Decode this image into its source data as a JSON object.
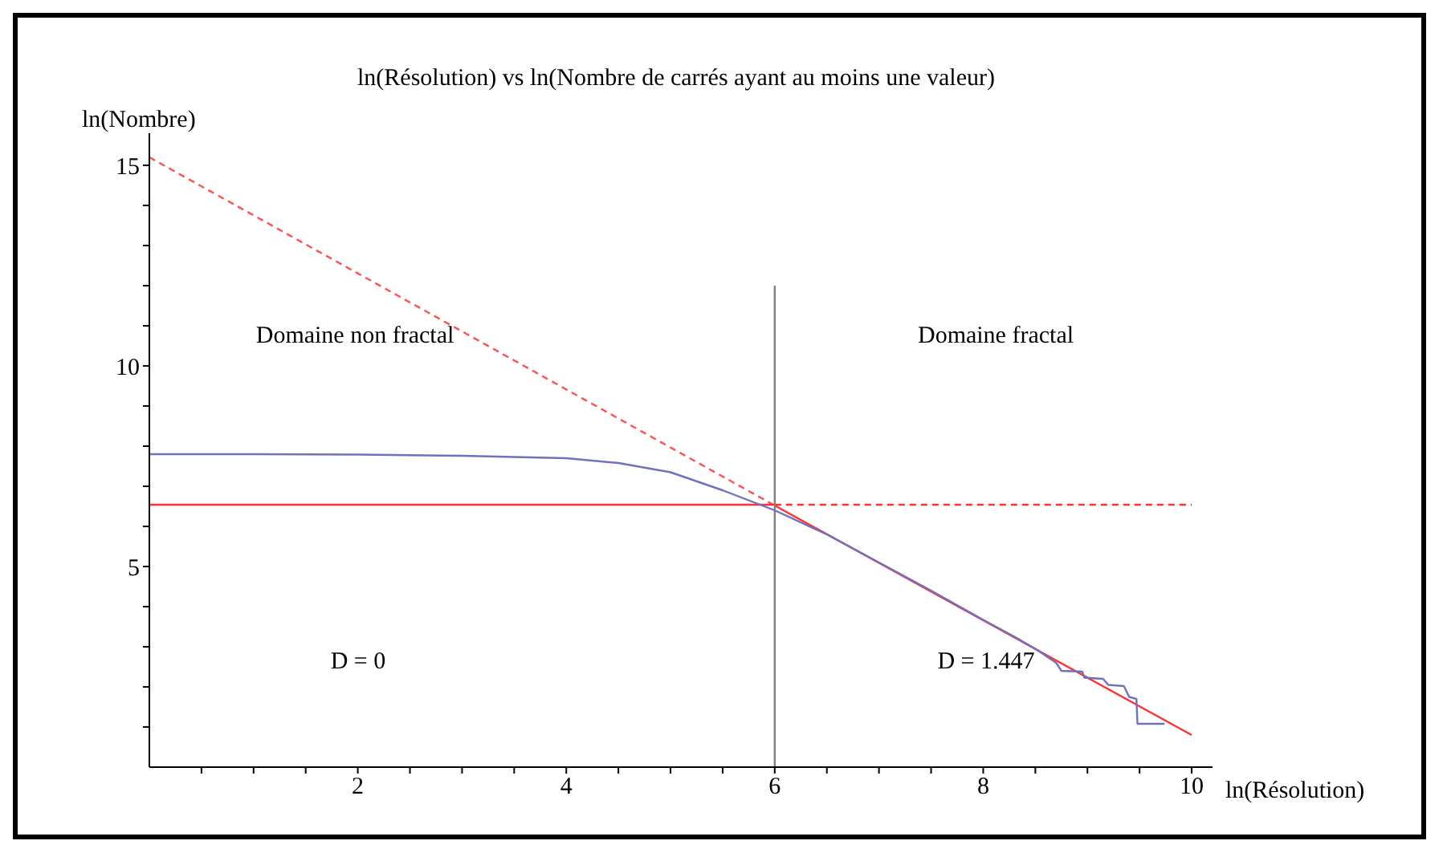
{
  "chart_data": {
    "type": "line",
    "title": "ln(Résolution) vs ln(Nombre de carrés ayant au moins une valeur)",
    "xlabel": "ln(Résolution)",
    "ylabel": "ln(Nombre)",
    "xlim": [
      0,
      10.2
    ],
    "ylim": [
      0,
      15.8
    ],
    "xticks": [
      {
        "value": 0.5,
        "label": null
      },
      {
        "value": 1,
        "label": null
      },
      {
        "value": 1.5,
        "label": null
      },
      2,
      {
        "value": 2.5,
        "label": null
      },
      {
        "value": 3,
        "label": null
      },
      {
        "value": 3.5,
        "label": null
      },
      4,
      {
        "value": 4.5,
        "label": null
      },
      {
        "value": 5,
        "label": null
      },
      {
        "value": 5.5,
        "label": null
      },
      6,
      {
        "value": 6.5,
        "label": null
      },
      {
        "value": 7,
        "label": null
      },
      {
        "value": 7.5,
        "label": null
      },
      8,
      {
        "value": 8.5,
        "label": null
      },
      {
        "value": 9,
        "label": null
      },
      {
        "value": 9.5,
        "label": null
      },
      10
    ],
    "yticks": [
      {
        "value": 1,
        "label": null
      },
      {
        "value": 2,
        "label": null
      },
      {
        "value": 3,
        "label": null
      },
      {
        "value": 4,
        "label": null
      },
      5,
      {
        "value": 6,
        "label": null
      },
      {
        "value": 7,
        "label": null
      },
      {
        "value": 8,
        "label": null
      },
      {
        "value": 9,
        "label": null
      },
      10,
      {
        "value": 11,
        "label": null
      },
      {
        "value": 12,
        "label": null
      },
      {
        "value": 13,
        "label": null
      },
      {
        "value": 14,
        "label": null
      },
      15
    ],
    "marker": "none",
    "series": [
      {
        "color": "#ff5050",
        "line_style": "dashed",
        "x": [
          0,
          6
        ],
        "values": [
          15.2,
          6.52
        ]
      },
      {
        "color": "#ff3030",
        "line_style": "solid",
        "x": [
          6,
          10
        ],
        "values": [
          6.52,
          0.8
        ]
      },
      {
        "color": "#ff3030",
        "line_style": "solid",
        "x": [
          0,
          6
        ],
        "values": [
          6.54,
          6.54
        ]
      },
      {
        "color": "#ff3030",
        "line_style": "dashed",
        "x": [
          6,
          10
        ],
        "values": [
          6.54,
          6.54
        ]
      },
      {
        "color": "#808080",
        "line_style": "solid",
        "x": [
          6,
          6
        ],
        "values": [
          0,
          12
        ]
      },
      {
        "color": "#7070c0",
        "line_style": "solid",
        "x": [
          0,
          1,
          2,
          3,
          4,
          4.5,
          5,
          5.5,
          6,
          6.5,
          7,
          7.5,
          8,
          8.3,
          8.5,
          8.7,
          8.75,
          8.95,
          8.97,
          9.15,
          9.2,
          9.35,
          9.4,
          9.47,
          9.48,
          9.74
        ],
        "values": [
          7.8,
          7.8,
          7.79,
          7.76,
          7.7,
          7.58,
          7.35,
          6.9,
          6.4,
          5.8,
          5.1,
          4.4,
          3.67,
          3.25,
          2.95,
          2.6,
          2.4,
          2.38,
          2.23,
          2.2,
          2.05,
          2.02,
          1.75,
          1.7,
          1.08,
          1.08
        ]
      }
    ],
    "annotations": [
      "Domaine non fractal",
      "Domaine fractal",
      "D = 0",
      "D = 1.447"
    ]
  }
}
